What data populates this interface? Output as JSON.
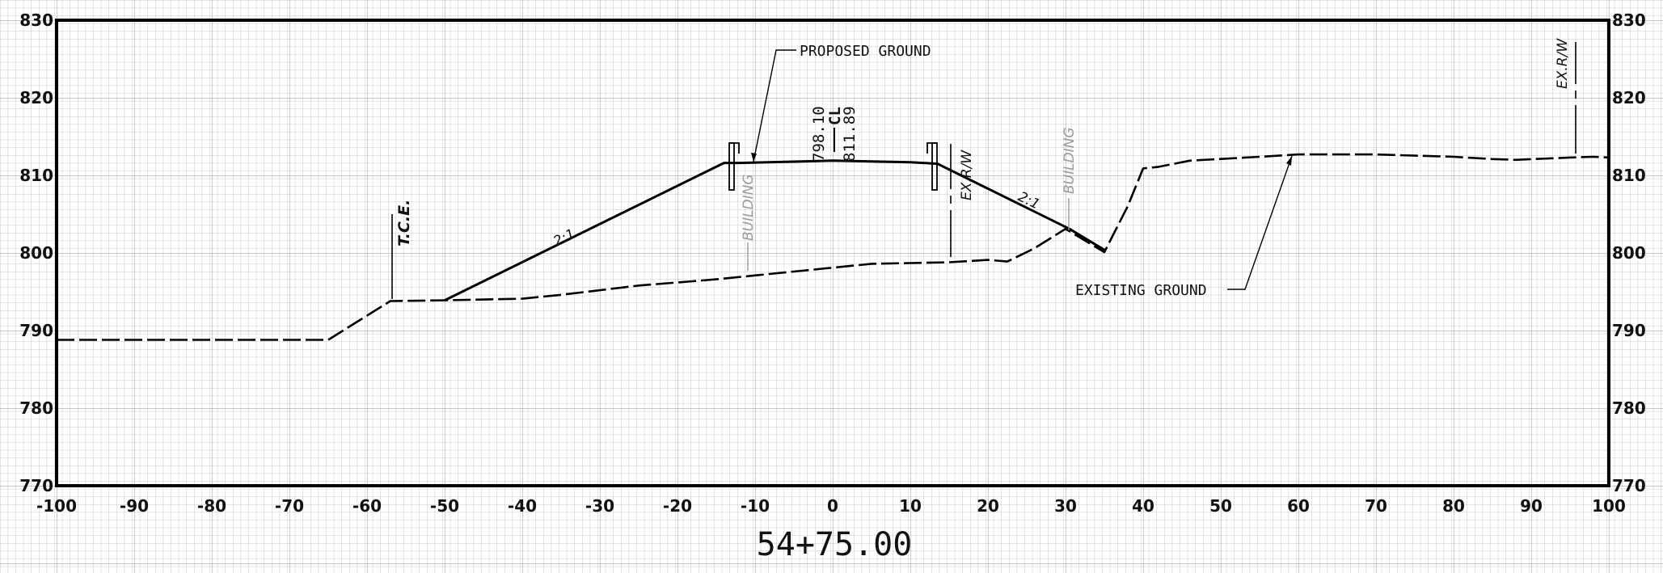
{
  "station_label": "54+75.00",
  "chart_data": {
    "type": "line",
    "title": "54+75.00",
    "xlim": [
      -100,
      100
    ],
    "ylim": [
      770,
      830
    ],
    "grid": true,
    "x_ticks": [
      "-100",
      "-90",
      "-80",
      "-70",
      "-60",
      "-50",
      "-40",
      "-30",
      "-20",
      "-10",
      "0",
      "10",
      "20",
      "30",
      "40",
      "50",
      "60",
      "70",
      "80",
      "90",
      "100"
    ],
    "y_ticks_left": [
      "830",
      "820",
      "810",
      "800",
      "790",
      "780",
      "770"
    ],
    "y_ticks_right": [
      "830",
      "820",
      "810",
      "800",
      "790",
      "780",
      "770"
    ],
    "series": [
      {
        "name": "EXISTING GROUND",
        "style": "dashed",
        "points": [
          [
            -100,
            788.8
          ],
          [
            -65,
            788.8
          ],
          [
            -57,
            793.8
          ],
          [
            -50,
            793.9
          ],
          [
            -40,
            794.1
          ],
          [
            -35,
            794.6
          ],
          [
            -30,
            795.2
          ],
          [
            -25,
            795.8
          ],
          [
            -20,
            796.2
          ],
          [
            -15,
            796.6
          ],
          [
            -10,
            797.1
          ],
          [
            -5,
            797.6
          ],
          [
            0,
            798.1
          ],
          [
            5,
            798.6
          ],
          [
            10,
            798.7
          ],
          [
            15,
            798.8
          ],
          [
            20,
            799.1
          ],
          [
            22.5,
            798.9
          ],
          [
            26,
            800.6
          ],
          [
            30,
            803.1
          ],
          [
            35,
            800.1
          ],
          [
            38,
            806.0
          ],
          [
            40,
            810.9
          ],
          [
            42,
            811.1
          ],
          [
            46,
            811.9
          ],
          [
            55,
            812.4
          ],
          [
            60,
            812.7
          ],
          [
            70,
            812.7
          ],
          [
            80,
            812.4
          ],
          [
            85,
            812.1
          ],
          [
            88,
            812.0
          ],
          [
            95,
            812.3
          ],
          [
            98,
            812.4
          ],
          [
            100,
            812.3
          ]
        ]
      },
      {
        "name": "PROPOSED GROUND",
        "style": "solid",
        "points": [
          [
            -50,
            793.9
          ],
          [
            -14,
            811.6
          ],
          [
            -12,
            811.6
          ],
          [
            0,
            811.9
          ],
          [
            10,
            811.7
          ],
          [
            13.5,
            811.5
          ],
          [
            30.5,
            803.1
          ],
          [
            35,
            800.4
          ]
        ]
      }
    ],
    "annotations": {
      "proposed_ground": "PROPOSED GROUND",
      "existing_ground": "EXISTING GROUND",
      "tce": "T.C.E.",
      "ex_row_1": "EX.R/W",
      "ex_row_2": "EX.R/W",
      "building_1": "BUILDING",
      "building_2": "BUILDING",
      "slope_1": "2:1",
      "slope_2": "2:1",
      "existing_elev": "798.10",
      "cl": "CL",
      "proposed_elev": "811.89"
    }
  }
}
